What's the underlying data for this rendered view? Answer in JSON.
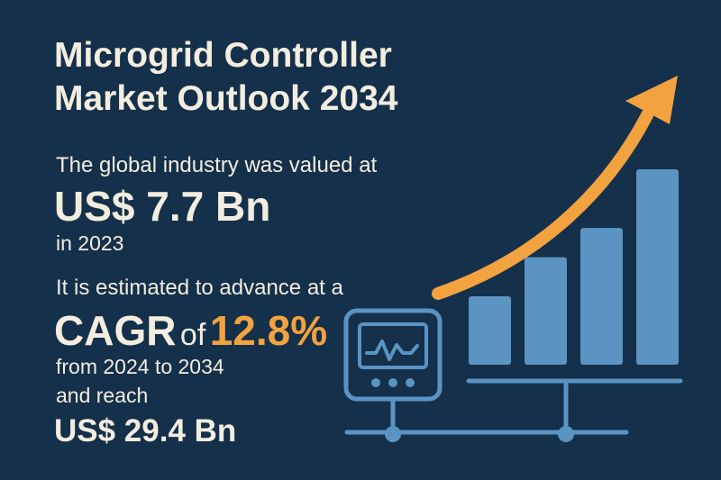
{
  "colors": {
    "background": "#14304a",
    "text": "#f3ede0",
    "accent": "#f2a23f",
    "bar": "#5b93c2",
    "line": "#5b93c2"
  },
  "title": {
    "line1": "Microgrid Controller",
    "line2": "Market Outlook 2034"
  },
  "valuation": {
    "intro": "The global industry was valued at",
    "amount": "US$ 7.7 Bn",
    "year": "in 2023"
  },
  "growth": {
    "estimate": "It is estimated to advance at a",
    "cagr_label": "CAGR",
    "of_label": "of",
    "cagr_value": "12.8%",
    "period": "from 2024 to 2034",
    "reach": "and reach",
    "target": "US$ 29.4 Bn"
  },
  "graphic": {
    "bars": [
      0.35,
      0.55,
      0.7,
      1.0
    ],
    "icons": [
      "controller-monitor-icon",
      "waveform-icon",
      "growth-arrow-icon",
      "network-line-icon"
    ]
  }
}
